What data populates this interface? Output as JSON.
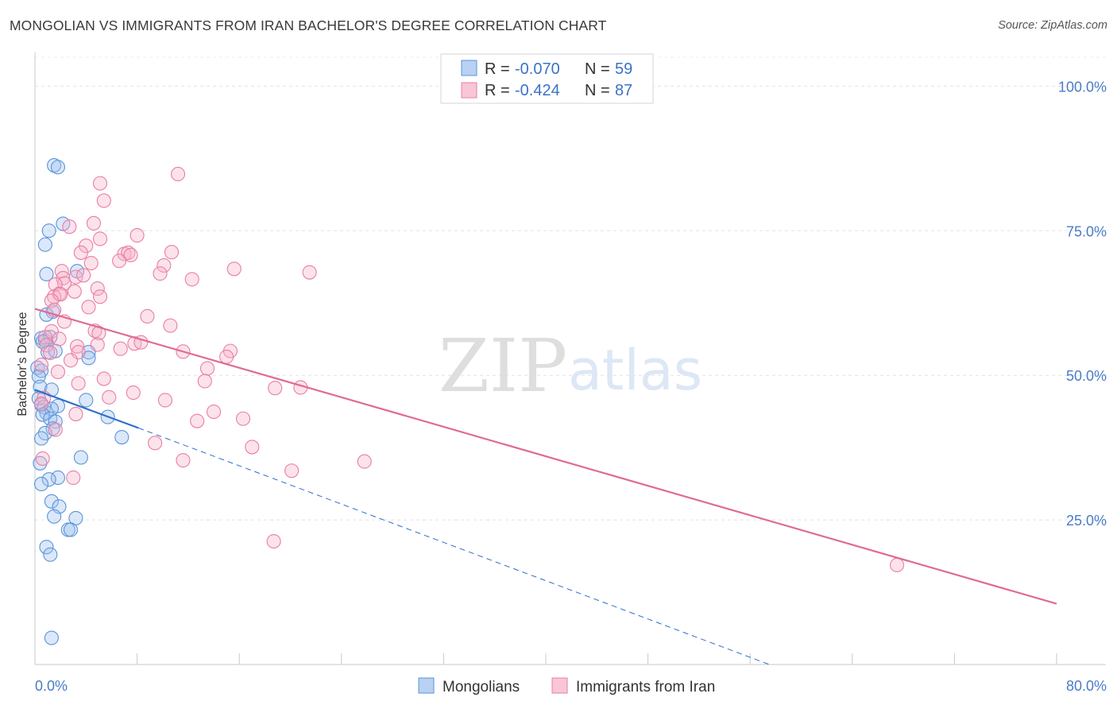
{
  "title": "MONGOLIAN VS IMMIGRANTS FROM IRAN BACHELOR'S DEGREE CORRELATION CHART",
  "source": "Source: ZipAtlas.com",
  "watermark": {
    "zip": "ZIP",
    "atlas": "atlas"
  },
  "legend": {
    "rows": [
      {
        "r_label": "R = ",
        "r_value": "-0.070",
        "n_label": "N = ",
        "n_value": "59"
      },
      {
        "r_label": "R = ",
        "r_value": "-0.424",
        "n_label": "N = ",
        "n_value": "87"
      }
    ]
  },
  "chart_data": {
    "type": "scatter",
    "title": "MONGOLIAN VS IMMIGRANTS FROM IRAN BACHELOR'S DEGREE CORRELATION CHART",
    "xlabel": "",
    "ylabel": "Bachelor's Degree",
    "xlim": [
      0,
      80
    ],
    "ylim": [
      0,
      105
    ],
    "x_tick_labels": [
      "0.0%",
      "80.0%"
    ],
    "y_ticks": [
      25,
      50,
      75,
      100
    ],
    "y_tick_labels": [
      "25.0%",
      "50.0%",
      "75.0%",
      "100.0%"
    ],
    "grid": "horizontal dashed",
    "legend_position": "top-center",
    "colors": {
      "mongolians": "#5b93d8",
      "iran": "#e87fa2",
      "mongolians_line": "#2e6fcb",
      "iran_line": "#e06b94"
    },
    "series": [
      {
        "name": "Mongolians",
        "R": -0.07,
        "N": 59,
        "trend": {
          "x0": 0,
          "y0": 47.5,
          "x1": 8.1,
          "y1": 40.9,
          "dashed_to_x": 57.5,
          "dashed_to_y": 0
        },
        "points": [
          [
            1.5,
            86.3
          ],
          [
            1.8,
            86.0
          ],
          [
            1.1,
            75.0
          ],
          [
            2.2,
            76.2
          ],
          [
            0.8,
            72.6
          ],
          [
            0.9,
            67.5
          ],
          [
            3.3,
            68.0
          ],
          [
            1.4,
            61.0
          ],
          [
            0.9,
            60.5
          ],
          [
            0.5,
            56.4
          ],
          [
            0.8,
            56.0
          ],
          [
            1.2,
            56.6
          ],
          [
            0.6,
            55.8
          ],
          [
            1.0,
            54.0
          ],
          [
            1.6,
            54.2
          ],
          [
            4.2,
            54.0
          ],
          [
            4.2,
            53.0
          ],
          [
            0.2,
            51.3
          ],
          [
            0.5,
            50.8
          ],
          [
            0.3,
            49.8
          ],
          [
            0.4,
            48.0
          ],
          [
            1.3,
            47.5
          ],
          [
            0.3,
            46.0
          ],
          [
            0.5,
            44.9
          ],
          [
            0.7,
            44.5
          ],
          [
            0.9,
            43.5
          ],
          [
            4.0,
            45.7
          ],
          [
            1.8,
            44.7
          ],
          [
            1.3,
            44.2
          ],
          [
            0.6,
            43.2
          ],
          [
            1.2,
            42.5
          ],
          [
            1.6,
            42.0
          ],
          [
            5.7,
            42.8
          ],
          [
            1.4,
            40.8
          ],
          [
            0.8,
            40.0
          ],
          [
            0.5,
            39.1
          ],
          [
            6.8,
            39.3
          ],
          [
            3.6,
            35.8
          ],
          [
            0.4,
            34.8
          ],
          [
            1.8,
            32.3
          ],
          [
            1.1,
            32.0
          ],
          [
            0.5,
            31.2
          ],
          [
            1.3,
            28.2
          ],
          [
            1.9,
            27.3
          ],
          [
            1.5,
            25.6
          ],
          [
            3.2,
            25.3
          ],
          [
            2.6,
            23.3
          ],
          [
            2.8,
            23.3
          ],
          [
            0.9,
            20.3
          ],
          [
            1.2,
            19.0
          ],
          [
            1.3,
            4.6
          ]
        ]
      },
      {
        "name": "Immigrants from Iran",
        "R": -0.424,
        "N": 87,
        "trend": {
          "x0": 0,
          "y0": 61.5,
          "x1": 80,
          "y1": 10.5
        },
        "points": [
          [
            11.2,
            84.8
          ],
          [
            5.1,
            83.2
          ],
          [
            5.4,
            80.2
          ],
          [
            2.7,
            75.7
          ],
          [
            4.6,
            76.3
          ],
          [
            8.0,
            74.2
          ],
          [
            5.1,
            73.6
          ],
          [
            4.0,
            72.4
          ],
          [
            7.0,
            71.0
          ],
          [
            3.6,
            71.2
          ],
          [
            7.3,
            71.2
          ],
          [
            7.5,
            70.8
          ],
          [
            10.7,
            71.3
          ],
          [
            6.6,
            69.8
          ],
          [
            10.1,
            69.0
          ],
          [
            4.4,
            69.4
          ],
          [
            2.1,
            68.0
          ],
          [
            15.6,
            68.4
          ],
          [
            21.5,
            67.8
          ],
          [
            9.8,
            67.6
          ],
          [
            2.2,
            66.8
          ],
          [
            3.2,
            67.0
          ],
          [
            3.8,
            67.3
          ],
          [
            12.3,
            66.6
          ],
          [
            2.3,
            65.9
          ],
          [
            1.6,
            65.7
          ],
          [
            4.9,
            65.0
          ],
          [
            3.1,
            64.5
          ],
          [
            1.9,
            64.1
          ],
          [
            1.5,
            63.6
          ],
          [
            2.0,
            64.0
          ],
          [
            5.1,
            63.6
          ],
          [
            1.3,
            62.9
          ],
          [
            4.2,
            61.8
          ],
          [
            1.5,
            61.3
          ],
          [
            8.8,
            60.2
          ],
          [
            2.3,
            59.3
          ],
          [
            10.6,
            58.6
          ],
          [
            1.3,
            57.6
          ],
          [
            4.7,
            57.7
          ],
          [
            5.0,
            57.3
          ],
          [
            0.8,
            56.6
          ],
          [
            1.9,
            56.3
          ],
          [
            0.9,
            55.2
          ],
          [
            3.3,
            55.0
          ],
          [
            7.8,
            55.5
          ],
          [
            8.3,
            55.7
          ],
          [
            6.7,
            54.6
          ],
          [
            4.9,
            55.3
          ],
          [
            11.6,
            54.1
          ],
          [
            3.4,
            54.0
          ],
          [
            15.3,
            54.2
          ],
          [
            15.0,
            53.2
          ],
          [
            1.2,
            53.9
          ],
          [
            2.8,
            52.6
          ],
          [
            0.5,
            51.8
          ],
          [
            13.5,
            51.2
          ],
          [
            1.8,
            50.6
          ],
          [
            5.4,
            49.4
          ],
          [
            13.3,
            49.0
          ],
          [
            3.4,
            48.6
          ],
          [
            18.8,
            47.8
          ],
          [
            20.8,
            47.9
          ],
          [
            7.7,
            47.0
          ],
          [
            5.8,
            46.2
          ],
          [
            0.7,
            46.1
          ],
          [
            10.2,
            45.7
          ],
          [
            0.5,
            45.1
          ],
          [
            14.0,
            43.7
          ],
          [
            3.2,
            43.3
          ],
          [
            16.3,
            42.5
          ],
          [
            12.7,
            42.1
          ],
          [
            1.6,
            40.6
          ],
          [
            9.4,
            38.3
          ],
          [
            17.0,
            37.6
          ],
          [
            0.6,
            35.6
          ],
          [
            11.6,
            35.3
          ],
          [
            25.8,
            35.1
          ],
          [
            20.1,
            33.5
          ],
          [
            3.0,
            32.3
          ],
          [
            18.7,
            21.3
          ],
          [
            67.5,
            17.2
          ]
        ]
      }
    ]
  },
  "bottom_legend": {
    "items": [
      {
        "label": "Mongolians",
        "color": "#5b93d8"
      },
      {
        "label": "Immigrants from Iran",
        "color": "#e87fa2"
      }
    ]
  }
}
